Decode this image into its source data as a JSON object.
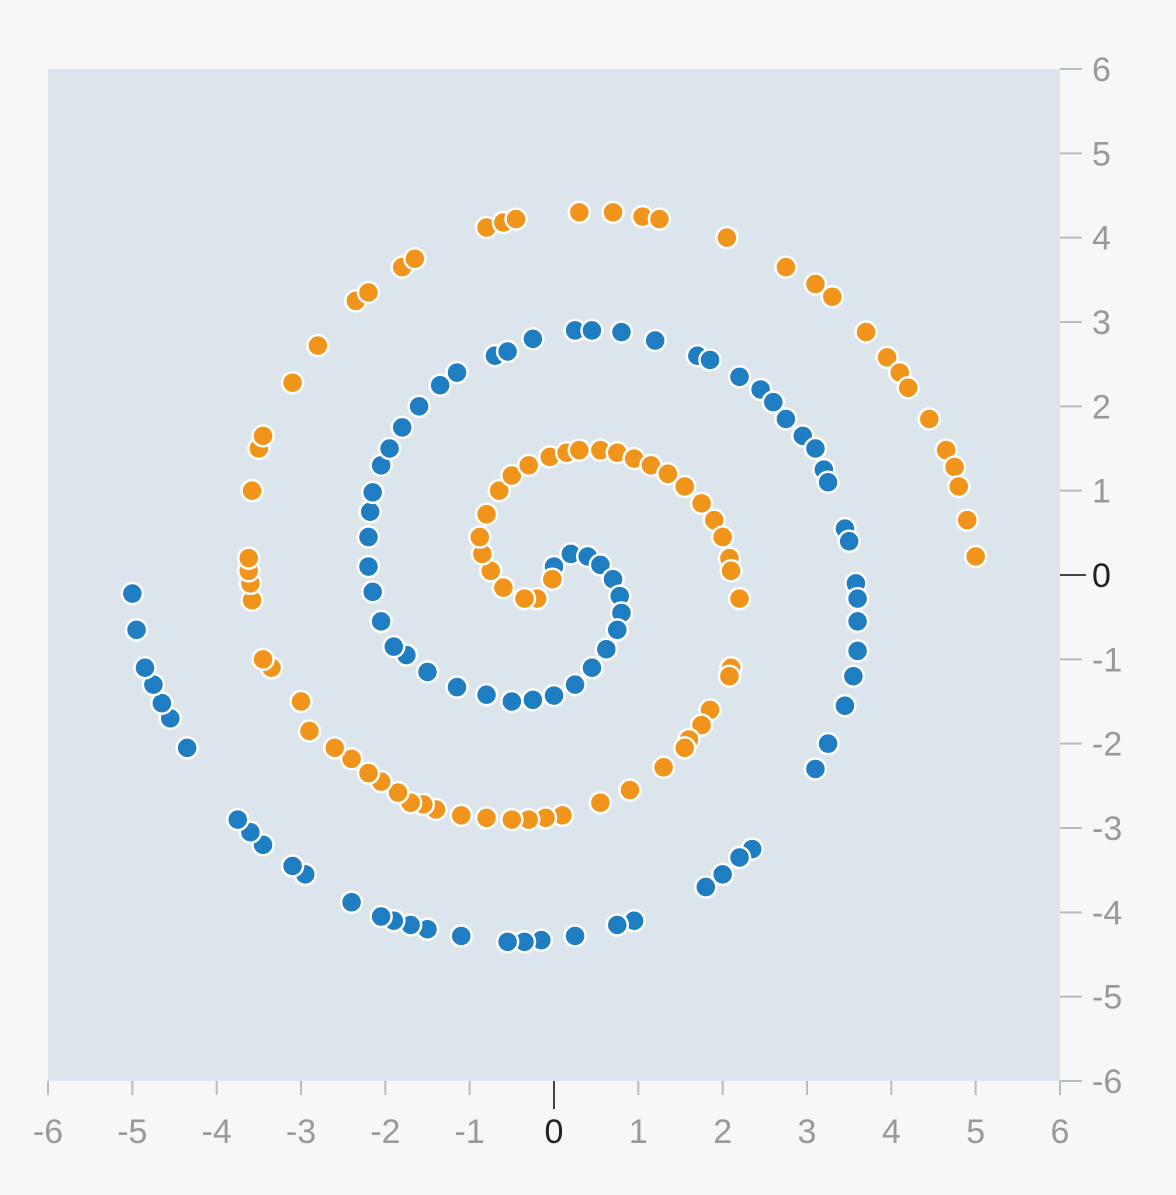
{
  "chart_data": {
    "type": "scatter",
    "title": "",
    "xlabel": "",
    "ylabel": "",
    "xlim": [
      -6,
      6
    ],
    "ylim": [
      -6,
      6
    ],
    "x_ticks": [
      "-6",
      "-5",
      "-4",
      "-3",
      "-2",
      "-1",
      "0",
      "1",
      "2",
      "3",
      "4",
      "5",
      "6"
    ],
    "y_ticks": [
      "6",
      "5",
      "4",
      "3",
      "2",
      "1",
      "0",
      "-1",
      "-2",
      "-3",
      "-4",
      "-5",
      "-6"
    ],
    "y_axis_side": "right",
    "grid": false,
    "legend": "none",
    "plot_background": "#dce5ec",
    "series": [
      {
        "color": "#1f7dc2",
        "points": [
          [
            0.0,
            0.1
          ],
          [
            0.2,
            0.25
          ],
          [
            0.4,
            0.22
          ],
          [
            0.55,
            0.12
          ],
          [
            0.7,
            -0.05
          ],
          [
            0.78,
            -0.25
          ],
          [
            0.8,
            -0.45
          ],
          [
            0.75,
            -0.65
          ],
          [
            0.62,
            -0.88
          ],
          [
            0.45,
            -1.1
          ],
          [
            0.25,
            -1.3
          ],
          [
            0.0,
            -1.43
          ],
          [
            -0.25,
            -1.48
          ],
          [
            -0.5,
            -1.5
          ],
          [
            -0.8,
            -1.42
          ],
          [
            -1.15,
            -1.33
          ],
          [
            -1.5,
            -1.15
          ],
          [
            -1.75,
            -0.95
          ],
          [
            -1.9,
            -0.85
          ],
          [
            -2.05,
            -0.55
          ],
          [
            -2.15,
            -0.2
          ],
          [
            -2.2,
            0.1
          ],
          [
            -2.2,
            0.45
          ],
          [
            -2.18,
            0.75
          ],
          [
            -2.15,
            0.98
          ],
          [
            -2.05,
            1.3
          ],
          [
            -1.95,
            1.5
          ],
          [
            -1.8,
            1.75
          ],
          [
            -1.6,
            2.0
          ],
          [
            -1.35,
            2.25
          ],
          [
            -1.15,
            2.4
          ],
          [
            -0.7,
            2.6
          ],
          [
            -0.55,
            2.65
          ],
          [
            -0.25,
            2.8
          ],
          [
            0.25,
            2.9
          ],
          [
            0.45,
            2.9
          ],
          [
            0.8,
            2.88
          ],
          [
            1.2,
            2.78
          ],
          [
            1.7,
            2.6
          ],
          [
            1.85,
            2.55
          ],
          [
            2.2,
            2.35
          ],
          [
            2.45,
            2.2
          ],
          [
            2.6,
            2.05
          ],
          [
            2.75,
            1.85
          ],
          [
            2.95,
            1.65
          ],
          [
            3.1,
            1.5
          ],
          [
            3.2,
            1.25
          ],
          [
            3.25,
            1.1
          ],
          [
            3.45,
            0.55
          ],
          [
            3.5,
            0.4
          ],
          [
            3.58,
            -0.1
          ],
          [
            3.6,
            -0.28
          ],
          [
            3.6,
            -0.55
          ],
          [
            3.6,
            -0.9
          ],
          [
            3.55,
            -1.2
          ],
          [
            3.45,
            -1.55
          ],
          [
            3.25,
            -2.0
          ],
          [
            3.1,
            -2.3
          ],
          [
            2.35,
            -3.25
          ],
          [
            2.2,
            -3.35
          ],
          [
            2.0,
            -3.55
          ],
          [
            1.8,
            -3.7
          ],
          [
            0.95,
            -4.1
          ],
          [
            0.75,
            -4.15
          ],
          [
            0.25,
            -4.28
          ],
          [
            -0.15,
            -4.33
          ],
          [
            -0.35,
            -4.35
          ],
          [
            -0.55,
            -4.35
          ],
          [
            -1.1,
            -4.28
          ],
          [
            -1.5,
            -4.2
          ],
          [
            -1.7,
            -4.15
          ],
          [
            -1.9,
            -4.1
          ],
          [
            -2.05,
            -4.05
          ],
          [
            -2.4,
            -3.88
          ],
          [
            -2.95,
            -3.55
          ],
          [
            -3.1,
            -3.45
          ],
          [
            -3.45,
            -3.2
          ],
          [
            -3.6,
            -3.05
          ],
          [
            -3.75,
            -2.9
          ],
          [
            -4.35,
            -2.05
          ],
          [
            -4.55,
            -1.7
          ],
          [
            -4.65,
            -1.52
          ],
          [
            -4.75,
            -1.3
          ],
          [
            -4.85,
            -1.1
          ],
          [
            -4.95,
            -0.65
          ],
          [
            -5.0,
            -0.22
          ]
        ]
      },
      {
        "color": "#f0941c",
        "points": [
          [
            -0.02,
            -0.05
          ],
          [
            -0.2,
            -0.28
          ],
          [
            -0.35,
            -0.28
          ],
          [
            -0.6,
            -0.15
          ],
          [
            -0.75,
            0.05
          ],
          [
            -0.85,
            0.25
          ],
          [
            -0.88,
            0.45
          ],
          [
            -0.8,
            0.72
          ],
          [
            -0.65,
            1.0
          ],
          [
            -0.5,
            1.18
          ],
          [
            -0.3,
            1.3
          ],
          [
            -0.05,
            1.4
          ],
          [
            0.15,
            1.45
          ],
          [
            0.3,
            1.48
          ],
          [
            0.55,
            1.48
          ],
          [
            0.75,
            1.45
          ],
          [
            0.95,
            1.38
          ],
          [
            1.15,
            1.3
          ],
          [
            1.35,
            1.2
          ],
          [
            1.55,
            1.05
          ],
          [
            1.75,
            0.85
          ],
          [
            1.9,
            0.65
          ],
          [
            2.0,
            0.45
          ],
          [
            2.08,
            0.2
          ],
          [
            2.1,
            0.05
          ],
          [
            2.2,
            -0.28
          ],
          [
            2.1,
            -1.1
          ],
          [
            2.08,
            -1.2
          ],
          [
            1.85,
            -1.6
          ],
          [
            1.75,
            -1.78
          ],
          [
            1.6,
            -1.95
          ],
          [
            1.55,
            -2.05
          ],
          [
            1.3,
            -2.28
          ],
          [
            0.9,
            -2.55
          ],
          [
            0.55,
            -2.7
          ],
          [
            0.1,
            -2.85
          ],
          [
            -0.1,
            -2.88
          ],
          [
            -0.3,
            -2.9
          ],
          [
            -0.5,
            -2.9
          ],
          [
            -0.8,
            -2.88
          ],
          [
            -1.1,
            -2.85
          ],
          [
            -1.4,
            -2.78
          ],
          [
            -1.55,
            -2.72
          ],
          [
            -1.7,
            -2.7
          ],
          [
            -1.85,
            -2.58
          ],
          [
            -2.05,
            -2.45
          ],
          [
            -2.2,
            -2.35
          ],
          [
            -2.4,
            -2.18
          ],
          [
            -2.6,
            -2.05
          ],
          [
            -2.9,
            -1.85
          ],
          [
            -3.0,
            -1.5
          ],
          [
            -3.35,
            -1.1
          ],
          [
            -3.45,
            -1.0
          ],
          [
            -3.58,
            -0.3
          ],
          [
            -3.6,
            -0.1
          ],
          [
            -3.62,
            0.05
          ],
          [
            -3.62,
            0.2
          ],
          [
            -3.58,
            1.0
          ],
          [
            -3.5,
            1.5
          ],
          [
            -3.45,
            1.65
          ],
          [
            -3.1,
            2.28
          ],
          [
            -2.8,
            2.72
          ],
          [
            -2.35,
            3.25
          ],
          [
            -2.2,
            3.35
          ],
          [
            -1.8,
            3.65
          ],
          [
            -1.65,
            3.75
          ],
          [
            -0.8,
            4.12
          ],
          [
            -0.6,
            4.18
          ],
          [
            -0.45,
            4.22
          ],
          [
            0.3,
            4.3
          ],
          [
            0.7,
            4.3
          ],
          [
            1.05,
            4.25
          ],
          [
            1.25,
            4.22
          ],
          [
            2.05,
            4.0
          ],
          [
            2.75,
            3.65
          ],
          [
            3.1,
            3.45
          ],
          [
            3.3,
            3.3
          ],
          [
            3.7,
            2.88
          ],
          [
            3.95,
            2.58
          ],
          [
            4.1,
            2.4
          ],
          [
            4.2,
            2.22
          ],
          [
            4.45,
            1.85
          ],
          [
            4.65,
            1.48
          ],
          [
            4.75,
            1.28
          ],
          [
            4.8,
            1.05
          ],
          [
            4.9,
            0.65
          ],
          [
            5.0,
            0.22
          ]
        ]
      }
    ]
  }
}
